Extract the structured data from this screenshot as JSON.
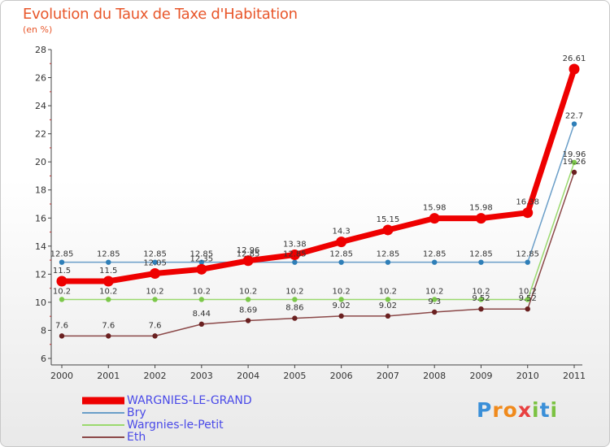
{
  "header": {
    "title": "Evolution du Taux de Taxe d'Habitation",
    "subtitle": "(en %)"
  },
  "chart_data": {
    "type": "line",
    "title": "Evolution du Taux de Taxe d'Habitation",
    "ylabel": "(en %)",
    "xlabel": "",
    "x": [
      "2000",
      "2001",
      "2002",
      "2003",
      "2004",
      "2005",
      "2006",
      "2007",
      "2008",
      "2009",
      "2010",
      "2011"
    ],
    "ylim": [
      6,
      28
    ],
    "yticks": [
      6,
      8,
      10,
      12,
      14,
      16,
      18,
      20,
      22,
      24,
      26,
      28
    ],
    "grid": false,
    "legend_position": "bottom-left",
    "series": [
      {
        "name": "Bry",
        "color": "#6a9ec8",
        "marker_color": "#2f7fb8",
        "values": [
          12.85,
          12.85,
          12.85,
          12.85,
          12.85,
          12.85,
          12.85,
          12.85,
          12.85,
          12.85,
          12.85,
          22.7
        ],
        "labels": [
          "12.85",
          "12.85",
          "12.85",
          "12.85",
          "12.85",
          "12.85",
          "12.85",
          "12.85",
          "12.85",
          "12.85",
          "12.85",
          "22.7"
        ]
      },
      {
        "name": "Wargnies-le-Petit",
        "color": "#9bd96e",
        "marker_color": "#7cc84a",
        "values": [
          10.2,
          10.2,
          10.2,
          10.2,
          10.2,
          10.2,
          10.2,
          10.2,
          10.2,
          10.2,
          10.2,
          19.96
        ],
        "labels": [
          "10.2",
          "10.2",
          "10.2",
          "10.2",
          "10.2",
          "10.2",
          "10.2",
          "10.2",
          "10.2",
          "10.2",
          "10.2",
          "19.96"
        ]
      },
      {
        "name": "Eth",
        "color": "#8b4848",
        "marker_color": "#6a2020",
        "values": [
          7.6,
          7.6,
          7.6,
          8.44,
          8.69,
          8.86,
          9.02,
          9.02,
          9.3,
          9.52,
          9.52,
          19.26
        ],
        "labels": [
          "7.6",
          "7.6",
          "7.6",
          "8.44",
          "8.69",
          "8.86",
          "9.02",
          "9.02",
          "9.3",
          "9.52",
          "9.52",
          "19.26"
        ]
      },
      {
        "name": "WARGNIES-LE-GRAND",
        "color": "#ee0000",
        "marker_color": "#ee0000",
        "values": [
          11.5,
          11.5,
          12.05,
          12.35,
          12.96,
          13.38,
          14.3,
          15.15,
          15.98,
          15.98,
          16.38,
          26.61
        ],
        "labels": [
          "11.5",
          "11.5",
          "12.05",
          "12.35",
          "12.96",
          "13.38",
          "14.3",
          "15.15",
          "15.98",
          "15.98",
          "16.38",
          "26.61"
        ]
      }
    ]
  },
  "legend": {
    "items": [
      {
        "label": "WARGNIES-LE-GRAND",
        "color": "#ee0000"
      },
      {
        "label": "Bry",
        "color": "#6a9ec8"
      },
      {
        "label": "Wargnies-le-Petit",
        "color": "#9bd96e"
      },
      {
        "label": "Eth",
        "color": "#8b4848"
      }
    ]
  },
  "brand": {
    "name": "Proxiti",
    "letters": [
      "P",
      "r",
      "o",
      "x",
      "i",
      "t",
      "i"
    ],
    "colors": [
      "#3a8fd8",
      "#f08a1c",
      "#f08a1c",
      "#e84040",
      "#7bc242",
      "#3a8fd8",
      "#7bc242"
    ]
  }
}
